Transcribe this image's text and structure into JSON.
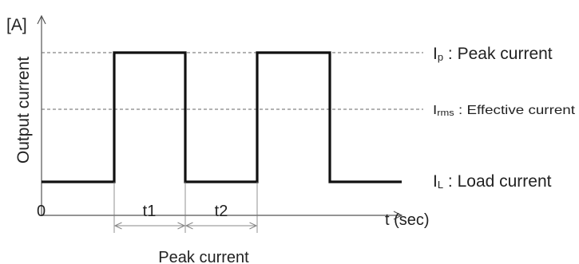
{
  "axes": {
    "y_unit": "[A]",
    "y_label": "Output current",
    "x_origin": "0",
    "x_label": "t (sec)"
  },
  "levels": {
    "peak": {
      "symbol": "I",
      "sub": "p",
      "text": " : Peak current"
    },
    "rms": {
      "symbol": "I",
      "sub": "rms",
      "text": " : Effective current"
    },
    "load": {
      "symbol": "I",
      "sub": "L",
      "text": " : Load current"
    }
  },
  "intervals": {
    "t1": "t1",
    "t2": "t2"
  },
  "caption": "Peak current",
  "colors": {
    "waveform": "#111111",
    "axis": "#555555",
    "guides": "#666666"
  }
}
